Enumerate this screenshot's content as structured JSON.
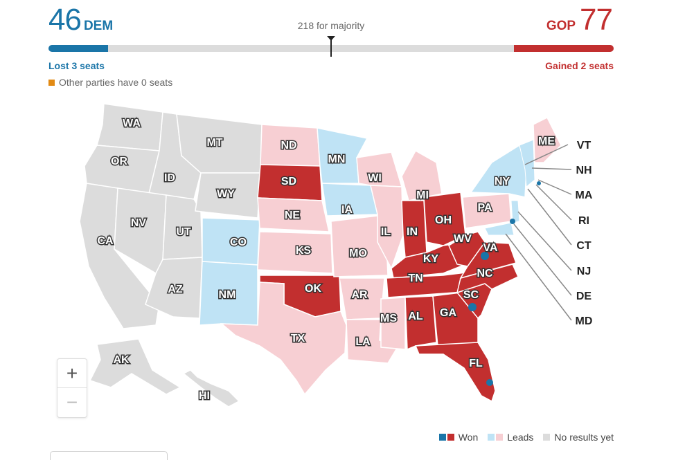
{
  "header": {
    "dem_seats": "46",
    "dem_label": "DEM",
    "gop_seats": "77",
    "gop_label": "GOP",
    "majority_label": "218 for majority",
    "dem_change": "Lost 3 seats",
    "gop_change": "Gained 2 seats",
    "other_parties": "Other parties have 0 seats"
  },
  "seat_bar": {
    "total_seats": 435,
    "dem_seats": 46,
    "gop_seats": 77,
    "majority": 218
  },
  "colors": {
    "dem_won": "#1a75a8",
    "gop_won": "#c22f2f",
    "dem_leads": "#bfe3f5",
    "gop_leads": "#f7cfd3",
    "no_results": "#dcdcdc",
    "other": "#e28a14"
  },
  "map": {
    "states": [
      {
        "code": "WA",
        "status": "none"
      },
      {
        "code": "OR",
        "status": "none"
      },
      {
        "code": "CA",
        "status": "none"
      },
      {
        "code": "ID",
        "status": "none"
      },
      {
        "code": "NV",
        "status": "none"
      },
      {
        "code": "UT",
        "status": "none"
      },
      {
        "code": "AZ",
        "status": "none"
      },
      {
        "code": "MT",
        "status": "none"
      },
      {
        "code": "WY",
        "status": "none"
      },
      {
        "code": "CO",
        "status": "dem-leads"
      },
      {
        "code": "NM",
        "status": "dem-leads"
      },
      {
        "code": "ND",
        "status": "gop-leads"
      },
      {
        "code": "SD",
        "status": "gop-won"
      },
      {
        "code": "NE",
        "status": "gop-leads"
      },
      {
        "code": "KS",
        "status": "gop-leads"
      },
      {
        "code": "OK",
        "status": "gop-won"
      },
      {
        "code": "TX",
        "status": "gop-leads"
      },
      {
        "code": "MN",
        "status": "dem-leads"
      },
      {
        "code": "IA",
        "status": "dem-leads"
      },
      {
        "code": "MO",
        "status": "gop-leads"
      },
      {
        "code": "AR",
        "status": "gop-leads"
      },
      {
        "code": "LA",
        "status": "gop-leads"
      },
      {
        "code": "WI",
        "status": "gop-leads"
      },
      {
        "code": "IL",
        "status": "gop-leads"
      },
      {
        "code": "MI",
        "status": "gop-leads"
      },
      {
        "code": "IN",
        "status": "gop-won"
      },
      {
        "code": "OH",
        "status": "gop-won"
      },
      {
        "code": "KY",
        "status": "gop-won"
      },
      {
        "code": "TN",
        "status": "gop-won"
      },
      {
        "code": "MS",
        "status": "gop-leads"
      },
      {
        "code": "AL",
        "status": "gop-won"
      },
      {
        "code": "GA",
        "status": "gop-won"
      },
      {
        "code": "FL",
        "status": "gop-won"
      },
      {
        "code": "SC",
        "status": "gop-won"
      },
      {
        "code": "NC",
        "status": "gop-won"
      },
      {
        "code": "VA",
        "status": "gop-won"
      },
      {
        "code": "WV",
        "status": "gop-won"
      },
      {
        "code": "PA",
        "status": "gop-leads"
      },
      {
        "code": "NY",
        "status": "dem-leads"
      },
      {
        "code": "ME",
        "status": "gop-leads"
      },
      {
        "code": "AK",
        "status": "none"
      },
      {
        "code": "HI",
        "status": "none"
      }
    ],
    "northeast_labels": [
      "VT",
      "NH",
      "MA",
      "RI",
      "CT",
      "NJ",
      "DE",
      "MD"
    ]
  },
  "zoom": {
    "in_label": "+",
    "out_label": "−"
  },
  "legend": {
    "won": "Won",
    "leads": "Leads",
    "no_results": "No results yet"
  }
}
